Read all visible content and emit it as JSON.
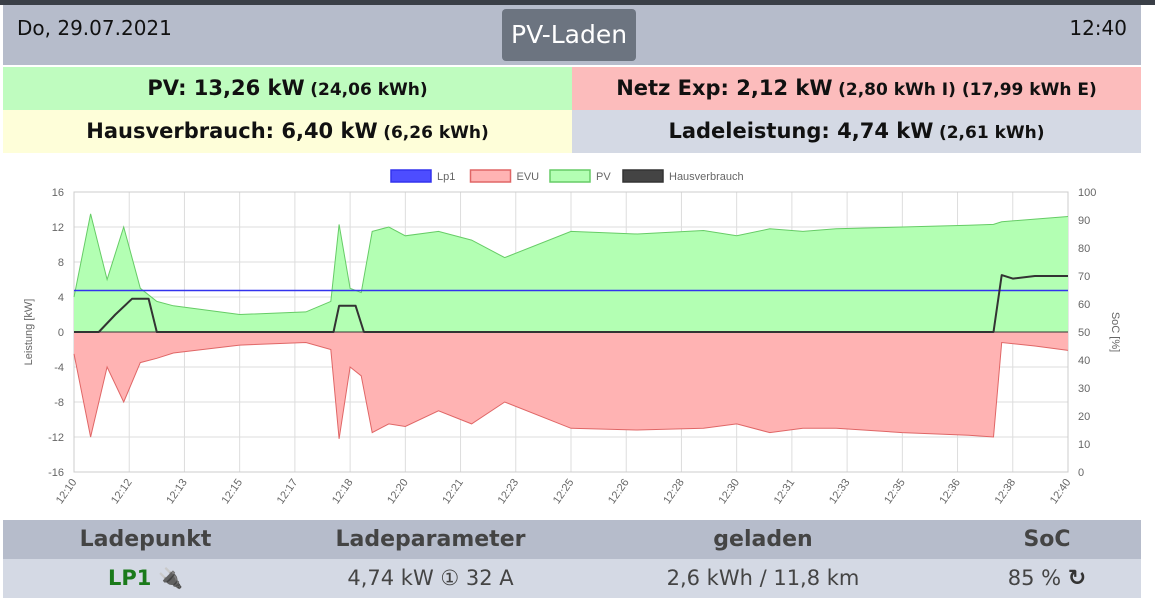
{
  "header": {
    "date": "Do, 29.07.2021",
    "title": "PV-Laden",
    "time": "12:40"
  },
  "summary": {
    "pv": {
      "label": "PV: 13,26 kW",
      "detail": "(24,06 kWh)",
      "color": "#bffcbf"
    },
    "netz": {
      "label": "Netz Exp: 2,12 kW",
      "detail": "(2,80 kWh I) (17,99 kWh E)",
      "color": "#fcbcbc"
    },
    "haus": {
      "label": "Hausverbrauch: 6,40 kW",
      "detail": "(6,26 kWh)",
      "color": "#fefed9"
    },
    "lade": {
      "label": "Ladeleistung: 4,74 kW",
      "detail": "(2,61 kWh)",
      "color": "#d4d9e4"
    }
  },
  "chart_data": {
    "type": "area",
    "ylabel": "Leistung [kW]",
    "y2label": "SoC [%]",
    "ylim": [
      -16,
      16
    ],
    "y2lim": [
      0,
      100
    ],
    "yticks": [
      "16",
      "12",
      "8",
      "4",
      "0",
      "-4",
      "-8",
      "-12",
      "-16"
    ],
    "y2ticks": [
      "100",
      "90",
      "80",
      "70",
      "60",
      "50",
      "40",
      "30",
      "20",
      "10",
      "0"
    ],
    "xlim": [
      "12:10",
      "12:40"
    ],
    "x_ticks": [
      "12:10",
      "12:12",
      "12:13",
      "12:15",
      "12:17",
      "12:18",
      "12:20",
      "12:21",
      "12:23",
      "12:25",
      "12:26",
      "12:28",
      "12:30",
      "12:31",
      "12:33",
      "12:35",
      "12:36",
      "12:38",
      "12:40"
    ],
    "legend_position": "top-center",
    "grid": true,
    "series": [
      {
        "name": "Lp1",
        "color": "#3333ee",
        "fill": "#4d4dff",
        "x": [
          "12:10",
          "12:40"
        ],
        "values": [
          4.74,
          4.74
        ]
      },
      {
        "name": "EVU",
        "color": "#e06666",
        "fill": "#ffb3b3",
        "x": [
          "12:10",
          "12:10:30",
          "12:11",
          "12:11:30",
          "12:12",
          "12:12:30",
          "12:13",
          "12:15",
          "12:17",
          "12:17:45",
          "12:18",
          "12:18:20",
          "12:18:40",
          "12:19",
          "12:19:30",
          "12:20",
          "12:21",
          "12:22",
          "12:23",
          "12:25",
          "12:27",
          "12:29",
          "12:30",
          "12:31",
          "12:32",
          "12:33",
          "12:35",
          "12:37",
          "12:37:45",
          "12:38",
          "12:39",
          "12:40"
        ],
        "values": [
          -2.5,
          -12,
          -4,
          -8,
          -3.5,
          -3,
          -2.4,
          -1.5,
          -1.2,
          -2,
          -12.2,
          -4,
          -5,
          -11.5,
          -10.5,
          -10.8,
          -9,
          -10.5,
          -8,
          -11,
          -11.2,
          -11,
          -10.5,
          -11.5,
          -11,
          -11,
          -11.5,
          -11.8,
          -12,
          -1.2,
          -1.6,
          -2.1
        ]
      },
      {
        "name": "PV",
        "color": "#66cc66",
        "fill": "#b3ffb3",
        "x": [
          "12:10",
          "12:10:30",
          "12:11",
          "12:11:30",
          "12:12",
          "12:12:30",
          "12:13",
          "12:15",
          "12:17",
          "12:17:45",
          "12:18",
          "12:18:20",
          "12:18:40",
          "12:19",
          "12:19:30",
          "12:20",
          "12:21",
          "12:22",
          "12:23",
          "12:25",
          "12:27",
          "12:29",
          "12:30",
          "12:31",
          "12:32",
          "12:33",
          "12:35",
          "12:37",
          "12:37:45",
          "12:38",
          "12:39",
          "12:40"
        ],
        "values": [
          4,
          13.5,
          6,
          12,
          5,
          3.5,
          3,
          2,
          2.3,
          3.5,
          12.3,
          5,
          4.5,
          11.5,
          12,
          11,
          11.5,
          10.5,
          8.5,
          11.5,
          11.2,
          11.6,
          11,
          11.8,
          11.5,
          11.8,
          12,
          12.2,
          12.3,
          12.6,
          12.9,
          13.2
        ]
      },
      {
        "name": "Hausverbrauch",
        "color": "#333333",
        "fill": "#444444",
        "x": [
          "12:10",
          "12:10:45",
          "12:11:15",
          "12:11:45",
          "12:12:15",
          "12:12:30",
          "12:17:50",
          "12:18",
          "12:18:30",
          "12:18:45",
          "12:37:45",
          "12:38",
          "12:38:20",
          "12:39",
          "12:40"
        ],
        "values": [
          0,
          0,
          2,
          3.8,
          3.8,
          0,
          0,
          3,
          3,
          0,
          0,
          6.5,
          6.1,
          6.4,
          6.4
        ]
      }
    ]
  },
  "table": {
    "headers": [
      "Ladepunkt",
      "Ladeparameter",
      "geladen",
      "SoC"
    ],
    "row": {
      "lp": "LP1",
      "lp_icon": "plug-icon",
      "params": "4,74 kW ① 32 A",
      "charged": "2,6 kWh / 11,8 km",
      "soc": "85 %",
      "soc_icon": "refresh-icon"
    }
  }
}
